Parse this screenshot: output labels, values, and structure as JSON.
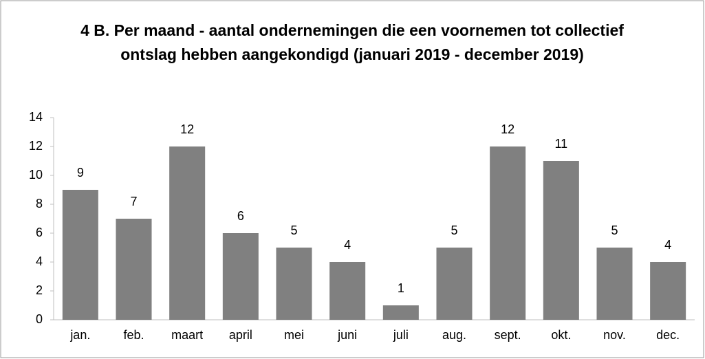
{
  "chart_data": {
    "type": "bar",
    "title": "4 B. Per maand - aantal ondernemingen die een voornemen tot collectief ontslag hebben aangekondigd (januari 2019 - december 2019)",
    "categories": [
      "jan.",
      "feb.",
      "maart",
      "april",
      "mei",
      "juni",
      "juli",
      "aug.",
      "sept.",
      "okt.",
      "nov.",
      "dec."
    ],
    "values": [
      9,
      7,
      12,
      6,
      5,
      4,
      1,
      5,
      12,
      11,
      5,
      4
    ],
    "color": "#808080",
    "ylim": [
      0,
      14
    ],
    "yticks": [
      0,
      2,
      4,
      6,
      8,
      10,
      12,
      14
    ],
    "grid": false
  }
}
